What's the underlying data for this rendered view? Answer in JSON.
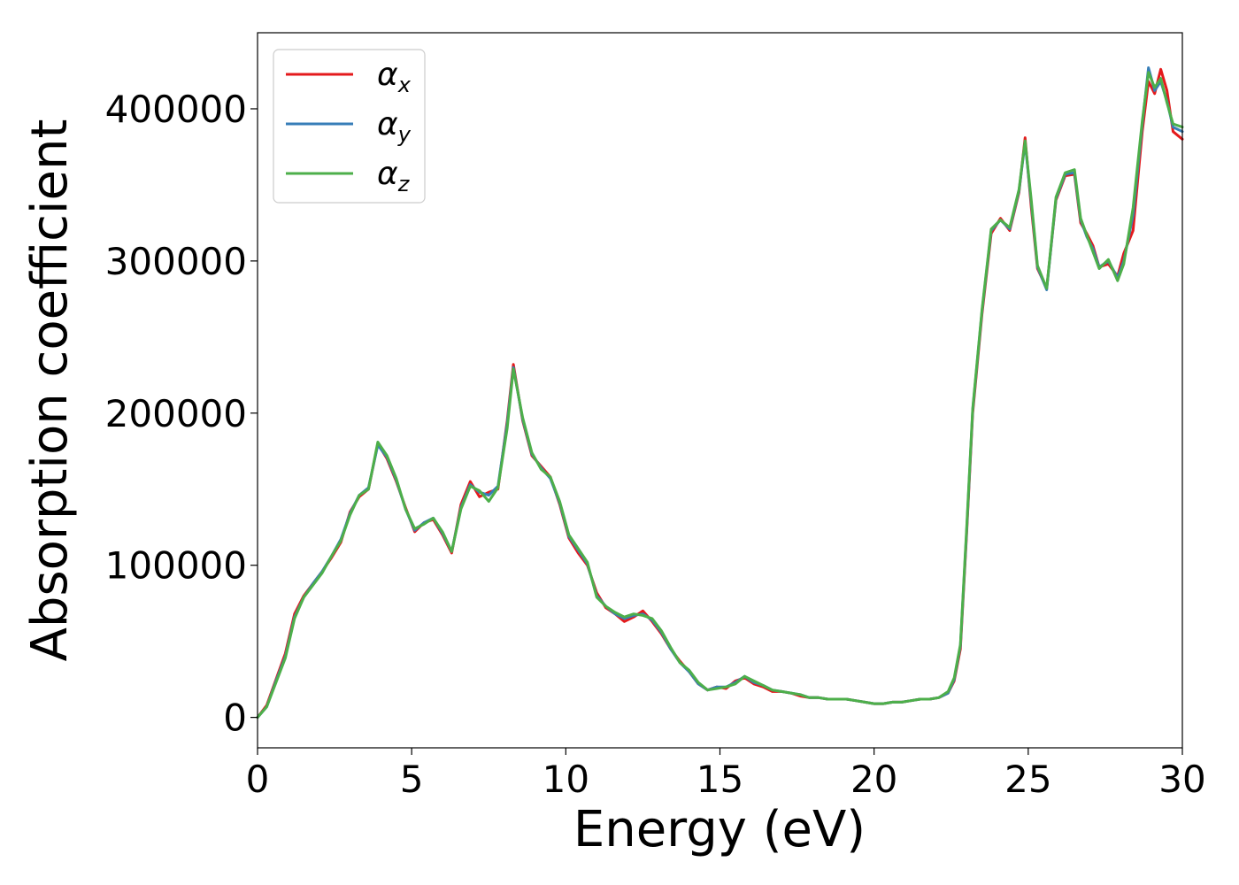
{
  "chart_data": {
    "type": "line",
    "title": "",
    "xlabel": "Energy (eV)",
    "ylabel": "Absorption coefficient",
    "xlim": [
      0,
      30
    ],
    "ylim": [
      -20000,
      450000
    ],
    "xticks": [
      0,
      5,
      10,
      15,
      20,
      25,
      30
    ],
    "xtick_labels": [
      "0",
      "5",
      "10",
      "15",
      "20",
      "25",
      "30"
    ],
    "yticks": [
      0,
      100000,
      200000,
      300000,
      400000
    ],
    "ytick_labels": [
      "0",
      "100000",
      "200000",
      "300000",
      "400000"
    ],
    "grid": false,
    "legend_position": "top-left",
    "x": [
      0,
      0.3,
      0.6,
      0.9,
      1.2,
      1.5,
      1.8,
      2.1,
      2.4,
      2.7,
      3.0,
      3.3,
      3.6,
      3.9,
      4.2,
      4.5,
      4.8,
      5.1,
      5.4,
      5.7,
      6.0,
      6.3,
      6.6,
      6.9,
      7.2,
      7.5,
      7.8,
      8.1,
      8.3,
      8.6,
      8.9,
      9.2,
      9.5,
      9.8,
      10.1,
      10.4,
      10.7,
      11.0,
      11.3,
      11.6,
      11.9,
      12.2,
      12.5,
      12.8,
      13.1,
      13.4,
      13.7,
      14.0,
      14.3,
      14.6,
      14.9,
      15.2,
      15.5,
      15.8,
      16.1,
      16.4,
      16.7,
      17.0,
      17.3,
      17.6,
      17.9,
      18.2,
      18.5,
      18.8,
      19.1,
      19.4,
      19.7,
      20.0,
      20.3,
      20.6,
      20.9,
      21.2,
      21.5,
      21.8,
      22.1,
      22.4,
      22.6,
      22.8,
      23.0,
      23.2,
      23.5,
      23.8,
      24.1,
      24.4,
      24.7,
      24.9,
      25.1,
      25.3,
      25.6,
      25.9,
      26.2,
      26.5,
      26.7,
      26.9,
      27.1,
      27.3,
      27.6,
      27.9,
      28.1,
      28.4,
      28.7,
      28.9,
      29.1,
      29.3,
      29.5,
      29.7,
      30.0
    ],
    "series": [
      {
        "name": "α_x",
        "color": "#e41a1c",
        "values": [
          0,
          8000,
          25000,
          42000,
          68000,
          80000,
          88000,
          96000,
          105000,
          115000,
          135000,
          145000,
          150000,
          180000,
          170000,
          155000,
          138000,
          122000,
          128000,
          130000,
          120000,
          108000,
          140000,
          155000,
          145000,
          148000,
          150000,
          195000,
          232000,
          195000,
          172000,
          165000,
          158000,
          140000,
          118000,
          108000,
          100000,
          82000,
          72000,
          68000,
          63000,
          66000,
          70000,
          63000,
          55000,
          45000,
          37000,
          30000,
          22000,
          18000,
          20000,
          19000,
          24000,
          26000,
          22000,
          20000,
          17000,
          17000,
          16000,
          14000,
          13000,
          13000,
          12000,
          12000,
          12000,
          11000,
          10000,
          9000,
          9000,
          10000,
          10000,
          11000,
          12000,
          12000,
          13000,
          16000,
          24000,
          45000,
          120000,
          200000,
          265000,
          318000,
          328000,
          320000,
          345000,
          381000,
          335000,
          295000,
          282000,
          340000,
          356000,
          357000,
          325000,
          318000,
          310000,
          296000,
          298000,
          290000,
          305000,
          320000,
          385000,
          418000,
          410000,
          426000,
          412000,
          385000,
          380000
        ]
      },
      {
        "name": "α_y",
        "color": "#377eb8",
        "values": [
          0,
          7000,
          24000,
          40000,
          66000,
          79000,
          88000,
          96000,
          106000,
          117000,
          134000,
          146000,
          151000,
          179000,
          171000,
          156000,
          137000,
          123000,
          128000,
          131000,
          121000,
          109000,
          138000,
          153000,
          148000,
          146000,
          152000,
          193000,
          230000,
          196000,
          173000,
          164000,
          157000,
          141000,
          119000,
          110000,
          101000,
          80000,
          73000,
          68000,
          65000,
          67000,
          68000,
          64000,
          56000,
          45000,
          36000,
          30000,
          22000,
          18000,
          20000,
          20000,
          23000,
          27000,
          23000,
          21000,
          18000,
          17000,
          16000,
          15000,
          13000,
          13000,
          12000,
          12000,
          12000,
          11000,
          10000,
          9000,
          9000,
          10000,
          10000,
          11000,
          12000,
          12000,
          13000,
          16000,
          25000,
          47000,
          122000,
          202000,
          267000,
          320000,
          327000,
          321000,
          346000,
          378000,
          338000,
          296000,
          281000,
          341000,
          357000,
          358000,
          327000,
          316000,
          308000,
          296000,
          300000,
          289000,
          300000,
          330000,
          390000,
          427000,
          412000,
          418000,
          405000,
          388000,
          385000
        ]
      },
      {
        "name": "α_z",
        "color": "#4daf4a",
        "values": [
          0,
          7000,
          23000,
          39000,
          65000,
          79000,
          87000,
          95000,
          106000,
          116000,
          133000,
          146000,
          150000,
          181000,
          172000,
          157000,
          137000,
          124000,
          127000,
          131000,
          122000,
          109000,
          137000,
          152000,
          149000,
          142000,
          151000,
          190000,
          229000,
          197000,
          174000,
          163000,
          158000,
          142000,
          120000,
          111000,
          102000,
          79000,
          73000,
          69000,
          66000,
          68000,
          67000,
          65000,
          57000,
          46000,
          36000,
          31000,
          23000,
          18000,
          19000,
          20000,
          22000,
          27000,
          24000,
          21000,
          18000,
          17000,
          16000,
          15000,
          13000,
          13000,
          12000,
          12000,
          12000,
          11000,
          10000,
          9000,
          9000,
          10000,
          10000,
          11000,
          12000,
          12000,
          13000,
          17000,
          26000,
          48000,
          124000,
          203000,
          268000,
          321000,
          327000,
          322000,
          347000,
          379000,
          340000,
          297000,
          282000,
          342000,
          358000,
          360000,
          328000,
          317000,
          306000,
          295000,
          301000,
          287000,
          298000,
          335000,
          392000,
          424000,
          414000,
          420000,
          404000,
          390000,
          388000
        ]
      }
    ]
  }
}
